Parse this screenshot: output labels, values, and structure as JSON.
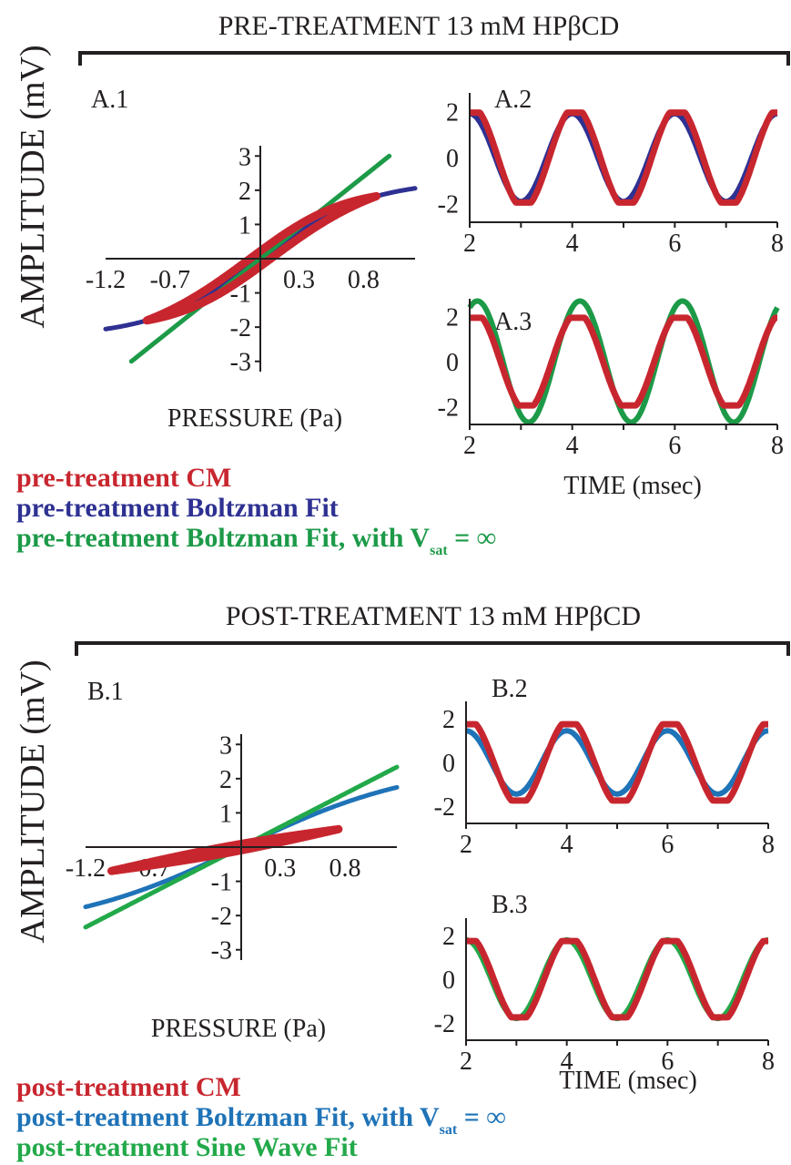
{
  "colors": {
    "cm": "#c8262f",
    "pre_boltz": "#2e3192",
    "pre_linear": "#1c9a48",
    "post_boltz": "#1f73b7",
    "post_sine": "#22a94a",
    "ink": "#231f20"
  },
  "sections": [
    {
      "header": "PRE-TREATMENT 13 mM HPβCD",
      "ylabel": "AMPLITUDE (mV)",
      "legend": [
        {
          "text": "pre-treatment CM",
          "color": "#c8262f"
        },
        {
          "text": "pre-treatment Boltzman Fit",
          "color": "#2e3192"
        },
        {
          "text": "pre-treatment Boltzman Fit, with V",
          "sub": "sat",
          "tail": " = ∞",
          "color": "#1c9a48"
        }
      ]
    },
    {
      "header": "POST-TREATMENT 13 mM HPβCD",
      "ylabel": "AMPLITUDE (mV)",
      "legend": [
        {
          "text": "post-treatment CM",
          "color": "#c8262f"
        },
        {
          "text": "post-treatment Boltzman Fit, with V",
          "sub": "sat",
          "tail": " = ∞",
          "color": "#1f73b7"
        },
        {
          "text": "post-treatment Sine Wave Fit",
          "color": "#22a94a"
        }
      ]
    }
  ],
  "chart_data": [
    {
      "panel": "A.1",
      "type": "line",
      "xlabel": "PRESSURE (Pa)",
      "xticks": [
        -1.2,
        -0.7,
        0.3,
        0.8
      ],
      "xtick_labels": [
        "-1.2",
        "-0.7",
        "0.3",
        "0.8"
      ],
      "yticks": [
        -3,
        -2,
        -1,
        1,
        2,
        3
      ],
      "xlim": [
        -1.2,
        1.2
      ],
      "ylim": [
        -3.3,
        3.3
      ],
      "series": [
        {
          "kind": "boltzmann",
          "smax": 2.3,
          "k": 1.38,
          "x": [
            -1.2,
            1.2
          ],
          "color": "#2e3192"
        },
        {
          "kind": "linear",
          "slope": 3.0,
          "x": [
            -1.0,
            1.0
          ],
          "color": "#1c9a48"
        },
        {
          "kind": "loop",
          "x": [
            -0.88,
            0.9
          ],
          "smax": 2.3,
          "k": 1.38,
          "sep": 0.14,
          "color": "#c8262f"
        }
      ]
    },
    {
      "panel": "A.2",
      "type": "line",
      "xlabel": "",
      "xticks": [
        2,
        4,
        6,
        8
      ],
      "yticks": [
        -2,
        0,
        2
      ],
      "xlim": [
        2,
        8
      ],
      "ylim": [
        -2.8,
        2.8
      ],
      "series": [
        {
          "kind": "cos",
          "amp": 1.9,
          "period": 2,
          "phase": 0.0,
          "x": [
            2,
            8
          ],
          "color": "#2e3192"
        },
        {
          "kind": "cm",
          "amp": 1.95,
          "period": 2,
          "phase": -0.05,
          "x": [
            2,
            8
          ],
          "color": "#c8262f"
        }
      ]
    },
    {
      "panel": "A.3",
      "type": "line",
      "xlabel": "TIME (msec)",
      "xticks": [
        2,
        4,
        6,
        8
      ],
      "yticks": [
        -2,
        0,
        2
      ],
      "xlim": [
        2,
        8
      ],
      "ylim": [
        -2.8,
        2.8
      ],
      "series": [
        {
          "kind": "cos",
          "amp": 2.7,
          "period": 2,
          "phase": -0.15,
          "x": [
            2,
            8
          ],
          "color": "#1c9a48"
        },
        {
          "kind": "cm",
          "amp": 1.95,
          "period": 2,
          "phase": -0.1,
          "x": [
            2,
            8
          ],
          "color": "#c8262f"
        }
      ]
    },
    {
      "panel": "B.1",
      "type": "line",
      "xlabel": "PRESSURE (Pa)",
      "xticks": [
        -1.2,
        -0.7,
        0.3,
        0.8
      ],
      "xtick_labels": [
        "-1.2",
        "-0.7",
        "0.3",
        "0.8"
      ],
      "yticks": [
        -3,
        -2,
        -1,
        1,
        2,
        3
      ],
      "xlim": [
        -1.2,
        1.2
      ],
      "ylim": [
        -3.3,
        3.3
      ],
      "series": [
        {
          "kind": "boltzmann",
          "smax": 2.5,
          "k": 0.9,
          "x": [
            -1.2,
            1.2
          ],
          "color": "#1f73b7"
        },
        {
          "kind": "linear",
          "slope": 1.95,
          "x": [
            -1.2,
            1.2
          ],
          "color": "#22a94a"
        },
        {
          "kind": "loop",
          "x": [
            -1.0,
            0.75
          ],
          "smax": 6.0,
          "k": 0.35,
          "sep": 0.06,
          "color": "#c8262f"
        }
      ]
    },
    {
      "panel": "B.2",
      "type": "line",
      "xlabel": "",
      "xticks": [
        2,
        4,
        6,
        8
      ],
      "yticks": [
        -2,
        0,
        2
      ],
      "xlim": [
        2,
        8
      ],
      "ylim": [
        -2.8,
        2.8
      ],
      "series": [
        {
          "kind": "cos",
          "amp": 1.45,
          "period": 2,
          "phase": 0.0,
          "x": [
            2,
            8
          ],
          "color": "#1f73b7"
        },
        {
          "kind": "cm",
          "amp": 1.75,
          "period": 2,
          "phase": -0.05,
          "x": [
            2,
            8
          ],
          "color": "#c8262f"
        }
      ]
    },
    {
      "panel": "B.3",
      "type": "line",
      "xlabel": "TIME (msec)",
      "xticks": [
        2,
        4,
        6,
        8
      ],
      "yticks": [
        -2,
        0,
        2
      ],
      "xlim": [
        2,
        8
      ],
      "ylim": [
        -2.8,
        2.8
      ],
      "series": [
        {
          "kind": "cos",
          "amp": 1.8,
          "period": 2,
          "phase": 0.0,
          "x": [
            2,
            8
          ],
          "color": "#22a94a"
        },
        {
          "kind": "cm",
          "amp": 1.75,
          "period": 2,
          "phase": -0.05,
          "x": [
            2,
            8
          ],
          "color": "#c8262f"
        }
      ]
    }
  ]
}
